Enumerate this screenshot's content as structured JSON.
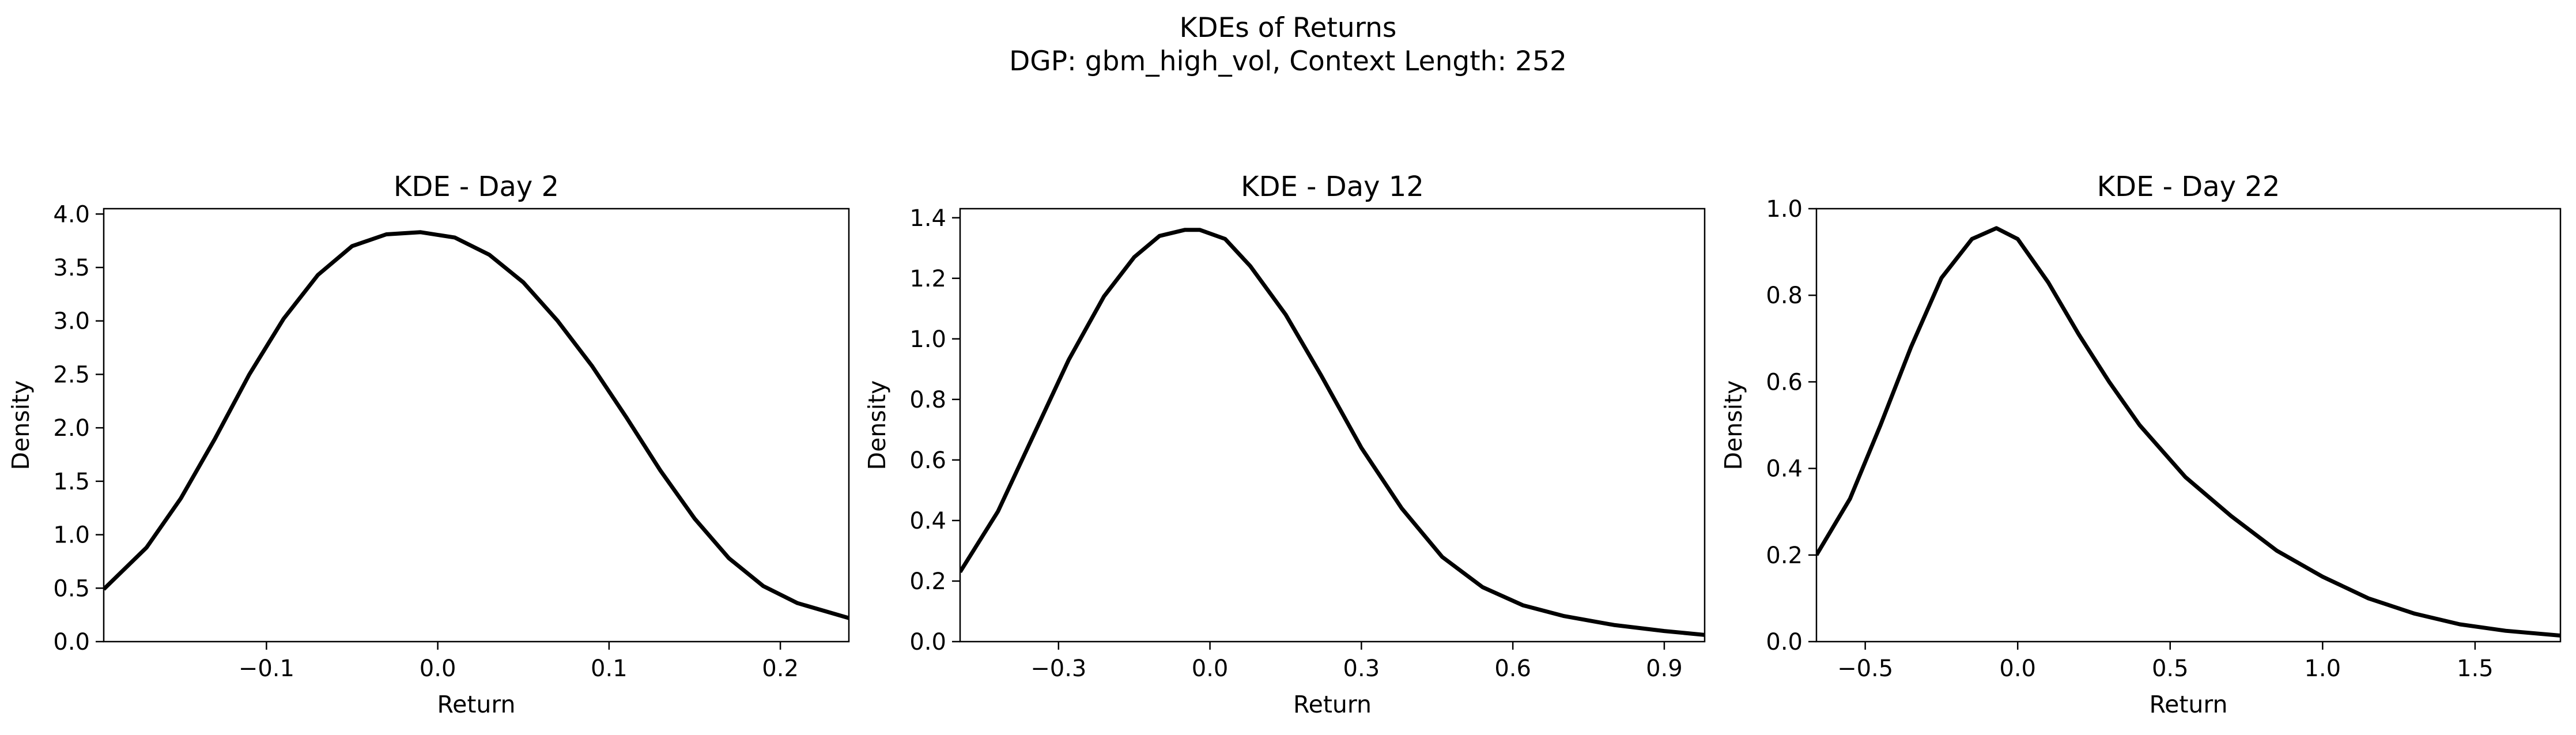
{
  "figure": {
    "title_line1": "KDEs of Returns",
    "title_line2": "DGP: gbm_high_vol, Context Length: 252"
  },
  "chart_data": [
    {
      "type": "line",
      "title": "KDE - Day 2",
      "xlabel": "Return",
      "ylabel": "Density",
      "xlim": [
        -0.195,
        0.24
      ],
      "ylim": [
        0,
        4.05
      ],
      "xticks": [
        -0.1,
        0.0,
        0.1,
        0.2
      ],
      "xtick_labels": [
        "−0.1",
        "0.0",
        "0.1",
        "0.2"
      ],
      "yticks": [
        0.0,
        0.5,
        1.0,
        1.5,
        2.0,
        2.5,
        3.0,
        3.5,
        4.0
      ],
      "ytick_labels": [
        "0.0",
        "0.5",
        "1.0",
        "1.5",
        "2.0",
        "2.5",
        "3.0",
        "3.5",
        "4.0"
      ],
      "grid": false,
      "color": "#000000",
      "series": [
        {
          "x": [
            -0.195,
            -0.17,
            -0.15,
            -0.13,
            -0.11,
            -0.09,
            -0.07,
            -0.05,
            -0.03,
            -0.01,
            0.01,
            0.03,
            0.05,
            0.07,
            0.09,
            0.11,
            0.13,
            0.15,
            0.17,
            0.19,
            0.21,
            0.24
          ],
          "y": [
            0.49,
            0.88,
            1.34,
            1.9,
            2.5,
            3.02,
            3.43,
            3.7,
            3.81,
            3.83,
            3.78,
            3.62,
            3.36,
            3.0,
            2.58,
            2.1,
            1.6,
            1.15,
            0.78,
            0.52,
            0.36,
            0.22
          ]
        }
      ]
    },
    {
      "type": "line",
      "title": "KDE - Day 12",
      "xlabel": "Return",
      "ylabel": "Density",
      "xlim": [
        -0.495,
        0.98
      ],
      "ylim": [
        0,
        1.43
      ],
      "xticks": [
        -0.3,
        0.0,
        0.3,
        0.6,
        0.9
      ],
      "xtick_labels": [
        "−0.3",
        "0.0",
        "0.3",
        "0.6",
        "0.9"
      ],
      "yticks": [
        0.0,
        0.2,
        0.4,
        0.6,
        0.8,
        1.0,
        1.2,
        1.4
      ],
      "ytick_labels": [
        "0.0",
        "0.2",
        "0.4",
        "0.6",
        "0.8",
        "1.0",
        "1.2",
        "1.4"
      ],
      "grid": false,
      "color": "#000000",
      "series": [
        {
          "x": [
            -0.495,
            -0.42,
            -0.35,
            -0.28,
            -0.21,
            -0.15,
            -0.1,
            -0.05,
            -0.02,
            0.03,
            0.08,
            0.15,
            0.22,
            0.3,
            0.38,
            0.46,
            0.54,
            0.62,
            0.7,
            0.8,
            0.9,
            0.98
          ],
          "y": [
            0.23,
            0.43,
            0.68,
            0.93,
            1.14,
            1.27,
            1.34,
            1.36,
            1.36,
            1.33,
            1.24,
            1.08,
            0.88,
            0.64,
            0.44,
            0.28,
            0.18,
            0.12,
            0.085,
            0.055,
            0.035,
            0.022
          ]
        }
      ]
    },
    {
      "type": "line",
      "title": "KDE - Day 22",
      "xlabel": "Return",
      "ylabel": "Density",
      "xlim": [
        -0.66,
        1.78
      ],
      "ylim": [
        0,
        1.0
      ],
      "xticks": [
        -0.5,
        0.0,
        0.5,
        1.0,
        1.5
      ],
      "xtick_labels": [
        "−0.5",
        "0.0",
        "0.5",
        "1.0",
        "1.5"
      ],
      "yticks": [
        0.0,
        0.2,
        0.4,
        0.6,
        0.8,
        1.0
      ],
      "ytick_labels": [
        "0.0",
        "0.2",
        "0.4",
        "0.6",
        "0.8",
        "1.0"
      ],
      "grid": false,
      "color": "#000000",
      "series": [
        {
          "x": [
            -0.66,
            -0.55,
            -0.45,
            -0.35,
            -0.25,
            -0.15,
            -0.07,
            0.0,
            0.1,
            0.2,
            0.3,
            0.4,
            0.55,
            0.7,
            0.85,
            1.0,
            1.15,
            1.3,
            1.45,
            1.6,
            1.78
          ],
          "y": [
            0.2,
            0.33,
            0.5,
            0.68,
            0.84,
            0.93,
            0.955,
            0.93,
            0.83,
            0.71,
            0.6,
            0.5,
            0.38,
            0.29,
            0.21,
            0.15,
            0.1,
            0.065,
            0.04,
            0.025,
            0.014
          ]
        }
      ]
    }
  ]
}
